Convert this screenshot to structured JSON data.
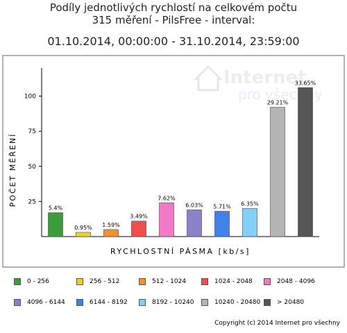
{
  "chart_data": {
    "type": "bar",
    "title": "Podíly jednotlivých rychlostí na celkovém počtu",
    "subtitle": "315 měření - PilsFree - interval:",
    "interval": "01.10.2014, 00:00:00 - 31.10.2014, 23:59:00",
    "xlabel": "RYCHLOSTNÍ PÁSMA [kb/s]",
    "ylabel": "POČET MĚŘENÍ",
    "ylim": [
      0,
      120
    ],
    "yticks": [
      25,
      50,
      75,
      100
    ],
    "grid": false,
    "legend": "bottom",
    "categories": [
      "0 - 256",
      "256 - 512",
      "512 - 1024",
      "1024 - 2048",
      "2048 - 4096",
      "4096 - 6144",
      "6144 - 8192",
      "8192 - 10240",
      "10240 - 20480",
      "> 20480"
    ],
    "values": [
      17,
      3,
      5,
      11,
      24,
      19,
      18,
      20,
      92,
      106
    ],
    "labels": [
      "5.4%",
      "0.95%",
      "1.59%",
      "3.49%",
      "7.62%",
      "6.03%",
      "5.71%",
      "6.35%",
      "29.21%",
      "33.65%"
    ],
    "colors": [
      "#3c9c3c",
      "#f2cf2a",
      "#f09132",
      "#f04e4e",
      "#f07ac8",
      "#8a82c9",
      "#4181ea",
      "#84cefa",
      "#b4b4b4",
      "#555555"
    ]
  },
  "watermark": {
    "line1": "Internet",
    "line2": "pro všechny"
  },
  "copyright": "Copyright (c) 2014 Internet pro všechny"
}
